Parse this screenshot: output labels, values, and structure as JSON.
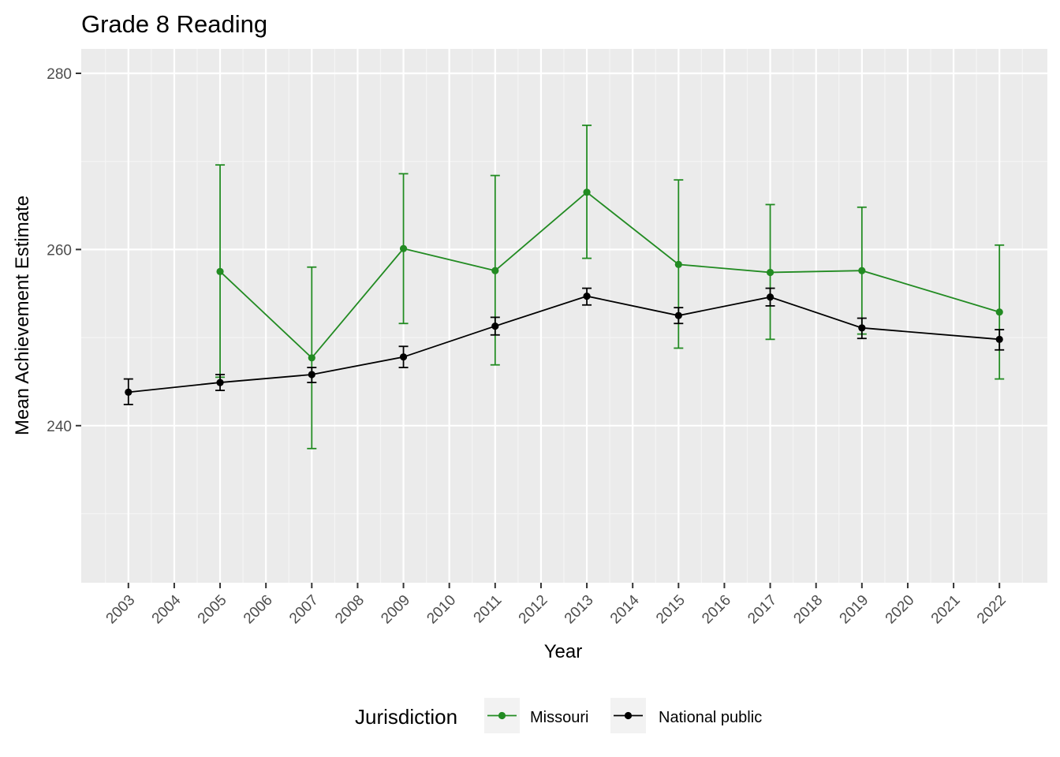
{
  "chart_data": {
    "type": "line",
    "title": "Grade 8 Reading",
    "xlabel": "Year",
    "ylabel": "Mean Achievement Estimate",
    "x_ticks": [
      "2003",
      "2004",
      "2005",
      "2006",
      "2007",
      "2008",
      "2009",
      "2010",
      "2011",
      "2012",
      "2013",
      "2014",
      "2015",
      "2016",
      "2017",
      "2018",
      "2019",
      "2020",
      "2021",
      "2022"
    ],
    "y_ticks": [
      240,
      260,
      280
    ],
    "ylim": [
      223,
      283
    ],
    "grid": true,
    "legend": {
      "title": "Jurisdiction",
      "position": "bottom"
    },
    "series": [
      {
        "name": "Missouri",
        "color": "#228B22",
        "points": [
          {
            "x": 2005,
            "y": 257.5,
            "lo": 245.5,
            "hi": 269.6
          },
          {
            "x": 2007,
            "y": 247.7,
            "lo": 237.4,
            "hi": 258.0
          },
          {
            "x": 2009,
            "y": 260.1,
            "lo": 251.6,
            "hi": 268.6
          },
          {
            "x": 2011,
            "y": 257.6,
            "lo": 246.9,
            "hi": 268.4
          },
          {
            "x": 2013,
            "y": 266.5,
            "lo": 259.0,
            "hi": 274.1
          },
          {
            "x": 2015,
            "y": 258.3,
            "lo": 248.8,
            "hi": 267.9
          },
          {
            "x": 2017,
            "y": 257.4,
            "lo": 249.8,
            "hi": 265.1
          },
          {
            "x": 2019,
            "y": 257.6,
            "lo": 250.4,
            "hi": 264.8
          },
          {
            "x": 2022,
            "y": 252.9,
            "lo": 245.3,
            "hi": 260.5
          }
        ]
      },
      {
        "name": "National public",
        "color": "#000000",
        "points": [
          {
            "x": 2003,
            "y": 243.8,
            "lo": 242.4,
            "hi": 245.3
          },
          {
            "x": 2005,
            "y": 244.9,
            "lo": 244.0,
            "hi": 245.8
          },
          {
            "x": 2007,
            "y": 245.8,
            "lo": 244.9,
            "hi": 246.6
          },
          {
            "x": 2009,
            "y": 247.8,
            "lo": 246.6,
            "hi": 249.0
          },
          {
            "x": 2011,
            "y": 251.3,
            "lo": 250.3,
            "hi": 252.3
          },
          {
            "x": 2013,
            "y": 254.7,
            "lo": 253.7,
            "hi": 255.6
          },
          {
            "x": 2015,
            "y": 252.5,
            "lo": 251.6,
            "hi": 253.4
          },
          {
            "x": 2017,
            "y": 254.6,
            "lo": 253.6,
            "hi": 255.6
          },
          {
            "x": 2019,
            "y": 251.1,
            "lo": 249.9,
            "hi": 252.2
          },
          {
            "x": 2022,
            "y": 249.8,
            "lo": 248.6,
            "hi": 250.9
          }
        ]
      }
    ]
  }
}
